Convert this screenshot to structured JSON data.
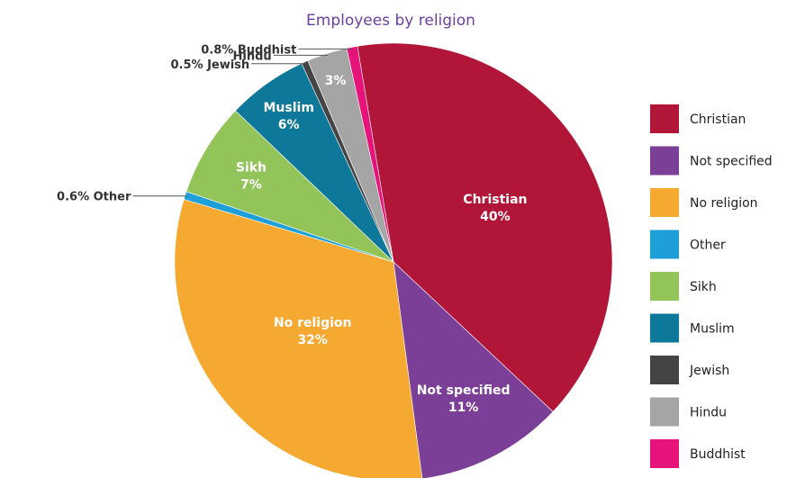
{
  "chart_data": {
    "type": "pie",
    "title": "Employees by religion",
    "slices": [
      {
        "name": "Christian",
        "value": 40,
        "color": "#b11538",
        "inside_label": [
          "Christian",
          "40%"
        ]
      },
      {
        "name": "Not specified",
        "value": 11,
        "color": "#7b3f98",
        "inside_label": [
          "Not specified",
          "11%"
        ]
      },
      {
        "name": "No religion",
        "value": 32,
        "color": "#f5a931",
        "inside_label": [
          "No religion",
          "32%"
        ]
      },
      {
        "name": "Other",
        "value": 0.6,
        "color": "#1e9fd8",
        "outside_label": "0.6% Other"
      },
      {
        "name": "Sikh",
        "value": 7,
        "color": "#93c45a",
        "inside_label": [
          "Sikh",
          "7%"
        ]
      },
      {
        "name": "Muslim",
        "value": 6,
        "color": "#0d7899",
        "inside_label": [
          "Muslim",
          "6%"
        ]
      },
      {
        "name": "Jewish",
        "value": 0.5,
        "color": "#444444",
        "outside_label": "0.5% Jewish"
      },
      {
        "name": "Hindu",
        "value": 3,
        "color": "#a5a5a5",
        "inside_label": [
          "3%"
        ],
        "outside_label": "Hindu"
      },
      {
        "name": "Buddhist",
        "value": 0.8,
        "color": "#e5137a",
        "outside_label": "0.8% Buddhist"
      }
    ],
    "legend": {
      "position": "right",
      "items": [
        "Christian",
        "Not specified",
        "No religion",
        "Other",
        "Sikh",
        "Muslim",
        "Jewish",
        "Hindu",
        "Buddhist"
      ]
    }
  }
}
